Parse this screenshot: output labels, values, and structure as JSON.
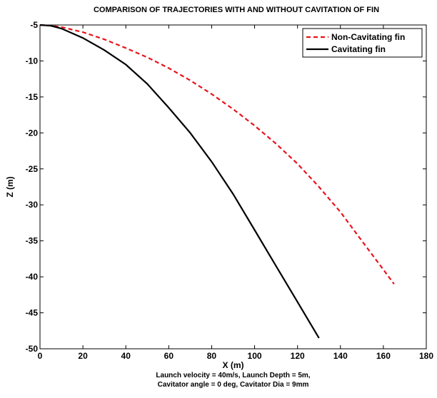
{
  "chart_data": {
    "type": "line",
    "title": "COMPARISON OF TRAJECTORIES WITH AND WITHOUT CAVITATION OF FIN",
    "xlabel": "X (m)",
    "ylabel": "Z (m)",
    "xlim": [
      0,
      180
    ],
    "ylim": [
      -50,
      -5
    ],
    "xticks": [
      0,
      20,
      40,
      60,
      80,
      100,
      120,
      140,
      160,
      180
    ],
    "yticks": [
      -5,
      -10,
      -15,
      -20,
      -25,
      -30,
      -35,
      -40,
      -45,
      -50
    ],
    "grid": false,
    "legend_position": "top-right",
    "notes": [
      "Launch velocity = 40m/s, Launch Depth = 5m,",
      "Cavitator angle = 0 deg, Cavitator Dia = 9mm"
    ],
    "series": [
      {
        "name": "Non-Cavitating fin",
        "color": "#e8141c",
        "style": "dashed",
        "x": [
          0,
          5,
          10,
          20,
          30,
          40,
          50,
          60,
          70,
          80,
          90,
          100,
          110,
          120,
          130,
          140,
          150,
          160,
          165
        ],
        "y": [
          -5.0,
          -5.1,
          -5.3,
          -6.0,
          -7.0,
          -8.2,
          -9.5,
          -11.0,
          -12.7,
          -14.6,
          -16.7,
          -19.0,
          -21.5,
          -24.3,
          -27.5,
          -31.0,
          -35.0,
          -39.0,
          -41.0
        ]
      },
      {
        "name": "Cavitating fin",
        "color": "#000000",
        "style": "solid",
        "x": [
          0,
          5,
          10,
          20,
          30,
          40,
          50,
          60,
          70,
          80,
          90,
          100,
          110,
          120,
          130
        ],
        "y": [
          -5.0,
          -5.1,
          -5.5,
          -6.8,
          -8.5,
          -10.5,
          -13.2,
          -16.5,
          -20.0,
          -24.0,
          -28.5,
          -33.5,
          -38.5,
          -43.5,
          -48.5
        ]
      }
    ]
  }
}
